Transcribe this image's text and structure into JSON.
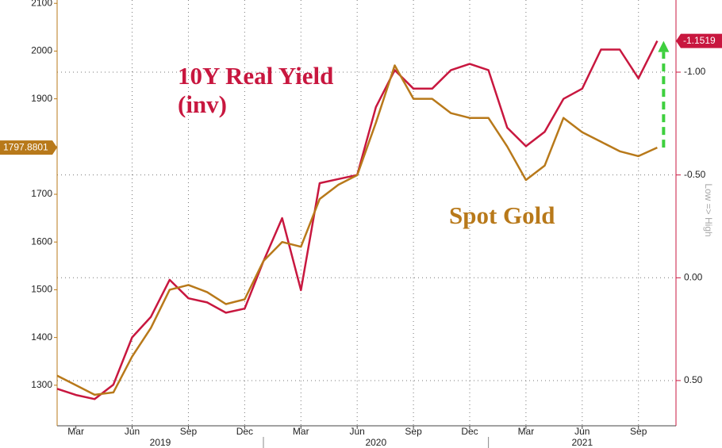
{
  "chart_data": {
    "type": "line",
    "x": [
      "2019-02",
      "2019-03",
      "2019-04",
      "2019-05",
      "2019-06",
      "2019-07",
      "2019-08",
      "2019-09",
      "2019-10",
      "2019-11",
      "2019-12",
      "2020-01",
      "2020-02",
      "2020-03",
      "2020-04",
      "2020-05",
      "2020-06",
      "2020-07",
      "2020-08",
      "2020-09",
      "2020-10",
      "2020-11",
      "2020-12",
      "2021-01",
      "2021-02",
      "2021-03",
      "2021-04",
      "2021-05",
      "2021-06",
      "2021-07",
      "2021-08",
      "2021-09",
      "2021-10"
    ],
    "series": [
      {
        "name": "10Y Real Yield (inv)",
        "color": "#c8173f",
        "axis": "y2",
        "values": [
          0.54,
          0.57,
          0.59,
          0.52,
          0.29,
          0.19,
          0.01,
          0.1,
          0.12,
          0.17,
          0.15,
          -0.08,
          -0.29,
          0.06,
          -0.46,
          -0.48,
          -0.5,
          -0.83,
          -1.01,
          -0.92,
          -0.92,
          -1.01,
          -1.04,
          -1.01,
          -0.73,
          -0.64,
          -0.71,
          -0.87,
          -0.92,
          -1.11,
          -1.11,
          -0.97,
          -1.1519
        ]
      },
      {
        "name": "Spot Gold",
        "color": "#b8791a",
        "values": [
          1320,
          1300,
          1280,
          1285,
          1360,
          1420,
          1500,
          1510,
          1495,
          1470,
          1480,
          1560,
          1600,
          1590,
          1690,
          1720,
          1740,
          1850,
          1970,
          1900,
          1900,
          1870,
          1860,
          1860,
          1800,
          1730,
          1760,
          1860,
          1830,
          1810,
          1790,
          1780,
          1797.8801
        ]
      }
    ],
    "xlim": [
      "2019-02",
      "2021-11"
    ],
    "xticks": [
      {
        "value": "2019-03",
        "label": "Mar"
      },
      {
        "value": "2019-06",
        "label": "Jun"
      },
      {
        "value": "2019-09",
        "label": "Sep"
      },
      {
        "value": "2019-12",
        "label": "Dec"
      },
      {
        "value": "2020-03",
        "label": "Mar"
      },
      {
        "value": "2020-06",
        "label": "Jun"
      },
      {
        "value": "2020-09",
        "label": "Sep"
      },
      {
        "value": "2020-12",
        "label": "Dec"
      },
      {
        "value": "2021-03",
        "label": "Mar"
      },
      {
        "value": "2021-06",
        "label": "Jun"
      },
      {
        "value": "2021-09",
        "label": "Sep"
      }
    ],
    "year_labels": [
      "2019",
      "2020",
      "2021"
    ],
    "ylim": [
      1215,
      2107
    ],
    "yticks": [
      1300,
      1400,
      1500,
      1600,
      1700,
      1800,
      1900,
      2000,
      2100
    ],
    "y2lim": [
      0.72,
      -1.351
    ],
    "y2ticks": [
      {
        "value": -1.0,
        "label": "-1.00"
      },
      {
        "value": -0.5,
        "label": "-0.50"
      },
      {
        "value": 0,
        "label": "0.00"
      },
      {
        "value": 0.5,
        "label": "0.50"
      }
    ],
    "y2_label": "Low => High",
    "grid": true
  }
}
